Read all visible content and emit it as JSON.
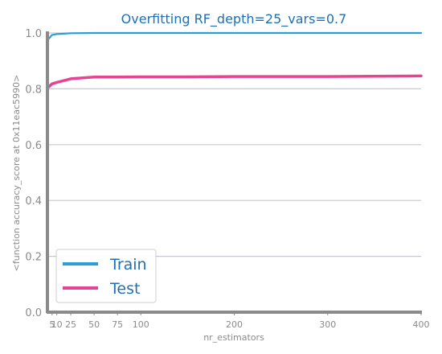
{
  "chart_data": {
    "type": "line",
    "title": "Overfitting RF_depth=25_vars=0.7",
    "xlabel": "nr_estimators",
    "ylabel": "<function accuracy_score at 0x11eac5990>",
    "xlim": [
      0,
      400
    ],
    "ylim": [
      0.0,
      1.0
    ],
    "x_ticks": [
      5,
      10,
      25,
      50,
      75,
      100,
      200,
      300,
      400
    ],
    "y_ticks": [
      0.0,
      0.2,
      0.4,
      0.6,
      0.8,
      1.0
    ],
    "y_tick_labels": [
      "0.0",
      "0.2",
      "0.4",
      "0.6",
      "0.8",
      "1.0"
    ],
    "grid": "horizontal",
    "legend_position": "lower-left",
    "x": [
      1,
      5,
      10,
      25,
      50,
      75,
      100,
      150,
      200,
      250,
      300,
      350,
      400
    ],
    "series": [
      {
        "name": "Train",
        "color": "#2a9fd6",
        "values": [
          0.978,
          0.993,
          0.996,
          0.999,
          1.0,
          1.0,
          1.0,
          1.0,
          1.0,
          1.0,
          1.0,
          1.0,
          1.0
        ]
      },
      {
        "name": "Test",
        "color": "#e84393",
        "values": [
          0.806,
          0.818,
          0.823,
          0.836,
          0.842,
          0.842,
          0.843,
          0.843,
          0.844,
          0.844,
          0.844,
          0.845,
          0.846
        ]
      }
    ]
  }
}
